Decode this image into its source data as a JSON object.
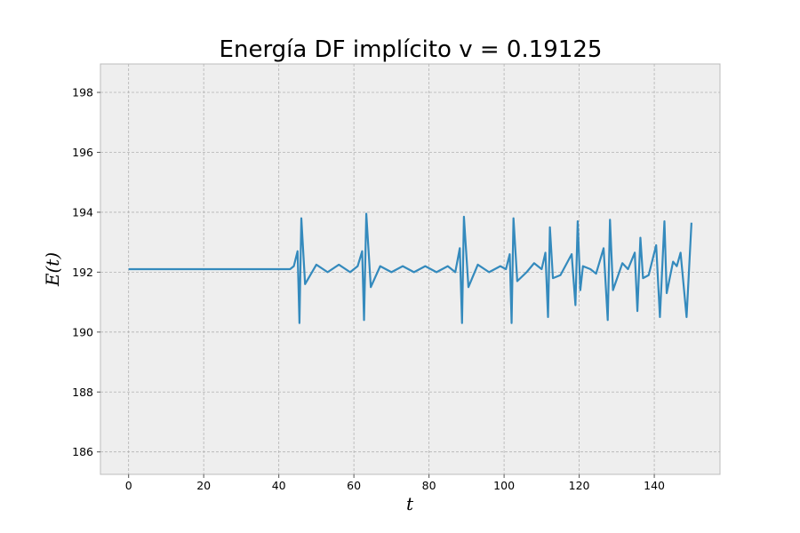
{
  "chart_data": {
    "type": "line",
    "title": "Energía DF implícito v = 0.19125",
    "x_label": "t",
    "y_label": "E(t)",
    "x": [
      0,
      43,
      44,
      45,
      45.5,
      46,
      47,
      50,
      53,
      56,
      59,
      61,
      62.2,
      62.7,
      63.3,
      64.5,
      67,
      70,
      73,
      76,
      79,
      82,
      85,
      87,
      88.2,
      88.8,
      89.3,
      90.5,
      93,
      96,
      99,
      100.5,
      101.5,
      102,
      102.5,
      103.5,
      106,
      108,
      110,
      111,
      111.7,
      112.2,
      113,
      115,
      118,
      119,
      119.6,
      120.3,
      121,
      123,
      124.5,
      126.5,
      127.6,
      128.2,
      129,
      131.5,
      133,
      134.8,
      135.5,
      136.3,
      137,
      138.5,
      140.5,
      141.5,
      142.7,
      143.3,
      145,
      146,
      147,
      148.6,
      149.9
    ],
    "series": [
      {
        "name": "E(t)",
        "color": "#348abd",
        "values": [
          192.1,
          192.1,
          192.2,
          192.7,
          190.3,
          193.8,
          191.6,
          192.25,
          192.0,
          192.25,
          192.0,
          192.2,
          192.7,
          190.4,
          193.95,
          191.5,
          192.2,
          192.0,
          192.2,
          192.0,
          192.2,
          192.0,
          192.2,
          192.0,
          192.8,
          190.3,
          193.85,
          191.5,
          192.25,
          192.0,
          192.2,
          192.1,
          192.6,
          190.3,
          193.8,
          191.7,
          192.0,
          192.3,
          192.1,
          192.65,
          190.5,
          193.5,
          191.8,
          191.9,
          192.6,
          190.9,
          193.7,
          191.4,
          192.2,
          192.1,
          191.95,
          192.8,
          190.4,
          193.75,
          191.4,
          192.3,
          192.1,
          192.65,
          190.7,
          193.15,
          191.8,
          191.9,
          192.9,
          190.5,
          193.7,
          191.3,
          192.35,
          192.2,
          192.65,
          190.5,
          193.65
        ]
      }
    ],
    "xlim": [
      -7.5,
      157.5
    ],
    "ylim": [
      185.25,
      198.95
    ],
    "xticks": [
      0,
      20,
      40,
      60,
      80,
      100,
      120,
      140
    ],
    "yticks": [
      186,
      188,
      190,
      192,
      194,
      196,
      198
    ],
    "grid": true
  }
}
